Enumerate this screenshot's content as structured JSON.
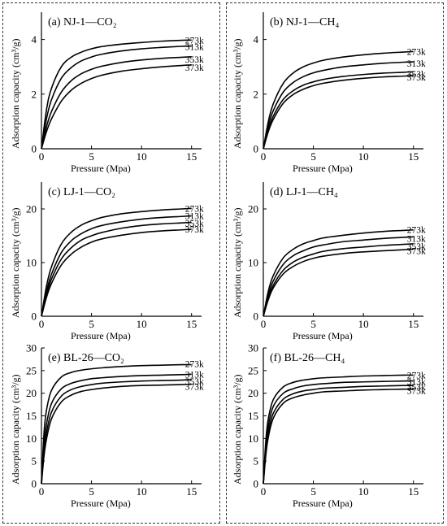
{
  "figure": {
    "xlabel": "Pressure (Mpa)",
    "ylabel": "Adsorption capacity (cm³/g)"
  },
  "chart_data": [
    {
      "type": "line",
      "panel": "(a)",
      "title": "NJ-1—CO₂",
      "xlabel": "Pressure (Mpa)",
      "ylabel": "Adsorption capacity (cm³/g)",
      "xlim": [
        0,
        16
      ],
      "ylim": [
        0,
        5
      ],
      "xticks": [
        0,
        5,
        10,
        15
      ],
      "yticks": [
        0,
        2,
        4
      ],
      "x": [
        0,
        0.5,
        1,
        2,
        3,
        4,
        5,
        6,
        8,
        10,
        12,
        14,
        15
      ],
      "series": [
        {
          "name": "273k",
          "values": [
            0,
            1.42,
            2.21,
            3.01,
            3.36,
            3.54,
            3.66,
            3.74,
            3.83,
            3.89,
            3.94,
            3.97,
            3.98
          ]
        },
        {
          "name": "313k",
          "values": [
            0,
            1.09,
            1.79,
            2.59,
            2.98,
            3.22,
            3.36,
            3.46,
            3.58,
            3.66,
            3.71,
            3.75,
            3.76
          ]
        },
        {
          "name": "353k",
          "values": [
            0,
            0.8,
            1.36,
            2.08,
            2.5,
            2.75,
            2.91,
            3.02,
            3.16,
            3.25,
            3.31,
            3.35,
            3.37
          ]
        },
        {
          "name": "373k",
          "values": [
            0,
            0.62,
            1.09,
            1.75,
            2.15,
            2.4,
            2.57,
            2.69,
            2.84,
            2.93,
            3.0,
            3.05,
            3.07
          ]
        }
      ]
    },
    {
      "type": "line",
      "panel": "(b)",
      "title": "NJ-1—CH₄",
      "xlabel": "Pressure (Mpa)",
      "ylabel": "Adsorption capacity (cm³/g)",
      "xlim": [
        0,
        16
      ],
      "ylim": [
        0,
        5
      ],
      "xticks": [
        0,
        5,
        10,
        15
      ],
      "yticks": [
        0,
        2,
        4
      ],
      "x": [
        0,
        0.5,
        1,
        2,
        3,
        4,
        5,
        6,
        8,
        10,
        12,
        14,
        15
      ],
      "series": [
        {
          "name": "273k",
          "values": [
            0,
            1.0,
            1.65,
            2.4,
            2.78,
            3.0,
            3.14,
            3.24,
            3.36,
            3.44,
            3.5,
            3.54,
            3.56
          ]
        },
        {
          "name": "313k",
          "values": [
            0,
            0.84,
            1.4,
            2.08,
            2.43,
            2.64,
            2.78,
            2.87,
            3.0,
            3.07,
            3.13,
            3.17,
            3.18
          ]
        },
        {
          "name": "353k",
          "values": [
            0,
            0.7,
            1.2,
            1.81,
            2.13,
            2.33,
            2.45,
            2.54,
            2.65,
            2.72,
            2.77,
            2.8,
            2.82
          ]
        },
        {
          "name": "373k",
          "values": [
            0,
            0.63,
            1.08,
            1.67,
            1.99,
            2.18,
            2.31,
            2.4,
            2.51,
            2.58,
            2.63,
            2.66,
            2.68
          ]
        }
      ]
    },
    {
      "type": "line",
      "panel": "(c)",
      "title": "LJ-1—CO₂",
      "xlabel": "Pressure (Mpa)",
      "ylabel": "Adsorption capacity (cm³/g)",
      "xlim": [
        0,
        16
      ],
      "ylim": [
        0,
        25
      ],
      "xticks": [
        0,
        5,
        10,
        15
      ],
      "yticks": [
        0,
        10,
        20
      ],
      "x": [
        0,
        0.5,
        1,
        2,
        3,
        4,
        5,
        6,
        8,
        10,
        12,
        14,
        15
      ],
      "series": [
        {
          "name": "273k",
          "values": [
            0,
            5.6,
            9.2,
            13.5,
            15.7,
            17.0,
            17.8,
            18.4,
            19.1,
            19.5,
            19.8,
            20.0,
            20.1
          ]
        },
        {
          "name": "313k",
          "values": [
            0,
            4.6,
            7.8,
            11.9,
            14.1,
            15.4,
            16.3,
            16.9,
            17.6,
            18.1,
            18.4,
            18.6,
            18.7
          ]
        },
        {
          "name": "353k",
          "values": [
            0,
            4.0,
            6.9,
            10.7,
            12.8,
            14.2,
            15.0,
            15.6,
            16.4,
            16.9,
            17.2,
            17.4,
            17.5
          ]
        },
        {
          "name": "373k",
          "values": [
            0,
            3.5,
            6.1,
            9.6,
            11.6,
            12.9,
            13.8,
            14.4,
            15.1,
            15.6,
            15.9,
            16.1,
            16.2
          ]
        }
      ]
    },
    {
      "type": "line",
      "panel": "(d)",
      "title": "LJ-1—CH₄",
      "xlabel": "Pressure (Mpa)",
      "ylabel": "Adsorption capacity (cm³/g)",
      "xlim": [
        0,
        16
      ],
      "ylim": [
        0,
        25
      ],
      "xticks": [
        0,
        5,
        10,
        15
      ],
      "yticks": [
        0,
        10,
        20
      ],
      "x": [
        0,
        0.5,
        1,
        2,
        3,
        4,
        5,
        6,
        8,
        10,
        12,
        14,
        15
      ],
      "series": [
        {
          "name": "273k",
          "values": [
            0,
            4.7,
            7.6,
            10.9,
            12.5,
            13.5,
            14.1,
            14.6,
            15.1,
            15.5,
            15.8,
            16.0,
            16.1
          ]
        },
        {
          "name": "313k",
          "values": [
            0,
            4.0,
            6.6,
            9.7,
            11.3,
            12.2,
            12.9,
            13.3,
            13.9,
            14.2,
            14.5,
            14.7,
            14.8
          ]
        },
        {
          "name": "353k",
          "values": [
            0,
            3.4,
            5.8,
            8.6,
            10.1,
            11.0,
            11.6,
            12.1,
            12.6,
            12.9,
            13.2,
            13.4,
            13.5
          ]
        },
        {
          "name": "373k",
          "values": [
            0,
            3.1,
            5.3,
            7.9,
            9.3,
            10.2,
            10.8,
            11.2,
            11.7,
            12.0,
            12.2,
            12.4,
            12.5
          ]
        }
      ]
    },
    {
      "type": "line",
      "panel": "(e)",
      "title": "BL-26—CO₂",
      "xlabel": "Pressure (Mpa)",
      "ylabel": "Adsorption capacity (cm³/g)",
      "xlim": [
        0,
        16
      ],
      "ylim": [
        0,
        30
      ],
      "xticks": [
        0,
        5,
        10,
        15
      ],
      "yticks": [
        0,
        5,
        10,
        15,
        20,
        25,
        30
      ],
      "x": [
        0,
        0.25,
        0.5,
        1,
        2,
        3,
        4,
        5,
        6,
        8,
        10,
        12,
        14,
        15
      ],
      "series": [
        {
          "name": "273k",
          "values": [
            0,
            11.0,
            16.2,
            20.6,
            23.6,
            24.6,
            25.1,
            25.4,
            25.6,
            25.9,
            26.1,
            26.2,
            26.3,
            26.3
          ]
        },
        {
          "name": "313k",
          "values": [
            0,
            8.4,
            13.1,
            17.7,
            21.0,
            22.2,
            22.8,
            23.2,
            23.4,
            23.7,
            23.9,
            24.0,
            24.1,
            24.2
          ]
        },
        {
          "name": "353k",
          "values": [
            0,
            7.0,
            11.2,
            15.8,
            19.4,
            20.8,
            21.5,
            21.9,
            22.2,
            22.5,
            22.7,
            22.8,
            22.9,
            23.0
          ]
        },
        {
          "name": "373k",
          "values": [
            0,
            6.0,
            9.8,
            14.3,
            18.1,
            19.6,
            20.4,
            20.8,
            21.1,
            21.5,
            21.7,
            21.8,
            21.9,
            22.0
          ]
        }
      ]
    },
    {
      "type": "line",
      "panel": "(f)",
      "title": "BL-26—CH₄",
      "xlabel": "Pressure (Mpa)",
      "ylabel": "Adsorption capacity (cm³/g)",
      "xlim": [
        0,
        16
      ],
      "ylim": [
        0,
        30
      ],
      "xticks": [
        0,
        5,
        10,
        15
      ],
      "yticks": [
        0,
        5,
        10,
        15,
        20,
        25,
        30
      ],
      "x": [
        0,
        0.25,
        0.5,
        1,
        2,
        3,
        4,
        5,
        6,
        8,
        10,
        12,
        14,
        15
      ],
      "series": [
        {
          "name": "273k",
          "values": [
            0,
            9.5,
            14.4,
            18.6,
            21.4,
            22.4,
            22.9,
            23.2,
            23.4,
            23.6,
            23.8,
            23.9,
            24.0,
            24.0
          ]
        },
        {
          "name": "313k",
          "values": [
            0,
            8.2,
            12.8,
            17.1,
            20.0,
            21.0,
            21.6,
            21.9,
            22.1,
            22.4,
            22.5,
            22.6,
            22.7,
            22.7
          ]
        },
        {
          "name": "353k",
          "values": [
            0,
            7.1,
            11.4,
            15.6,
            18.7,
            19.9,
            20.5,
            20.8,
            21.1,
            21.3,
            21.5,
            21.6,
            21.7,
            21.7
          ]
        },
        {
          "name": "373k",
          "values": [
            0,
            6.3,
            10.3,
            14.5,
            17.8,
            19.0,
            19.6,
            20.0,
            20.3,
            20.5,
            20.7,
            20.8,
            20.9,
            20.9
          ]
        }
      ]
    }
  ]
}
